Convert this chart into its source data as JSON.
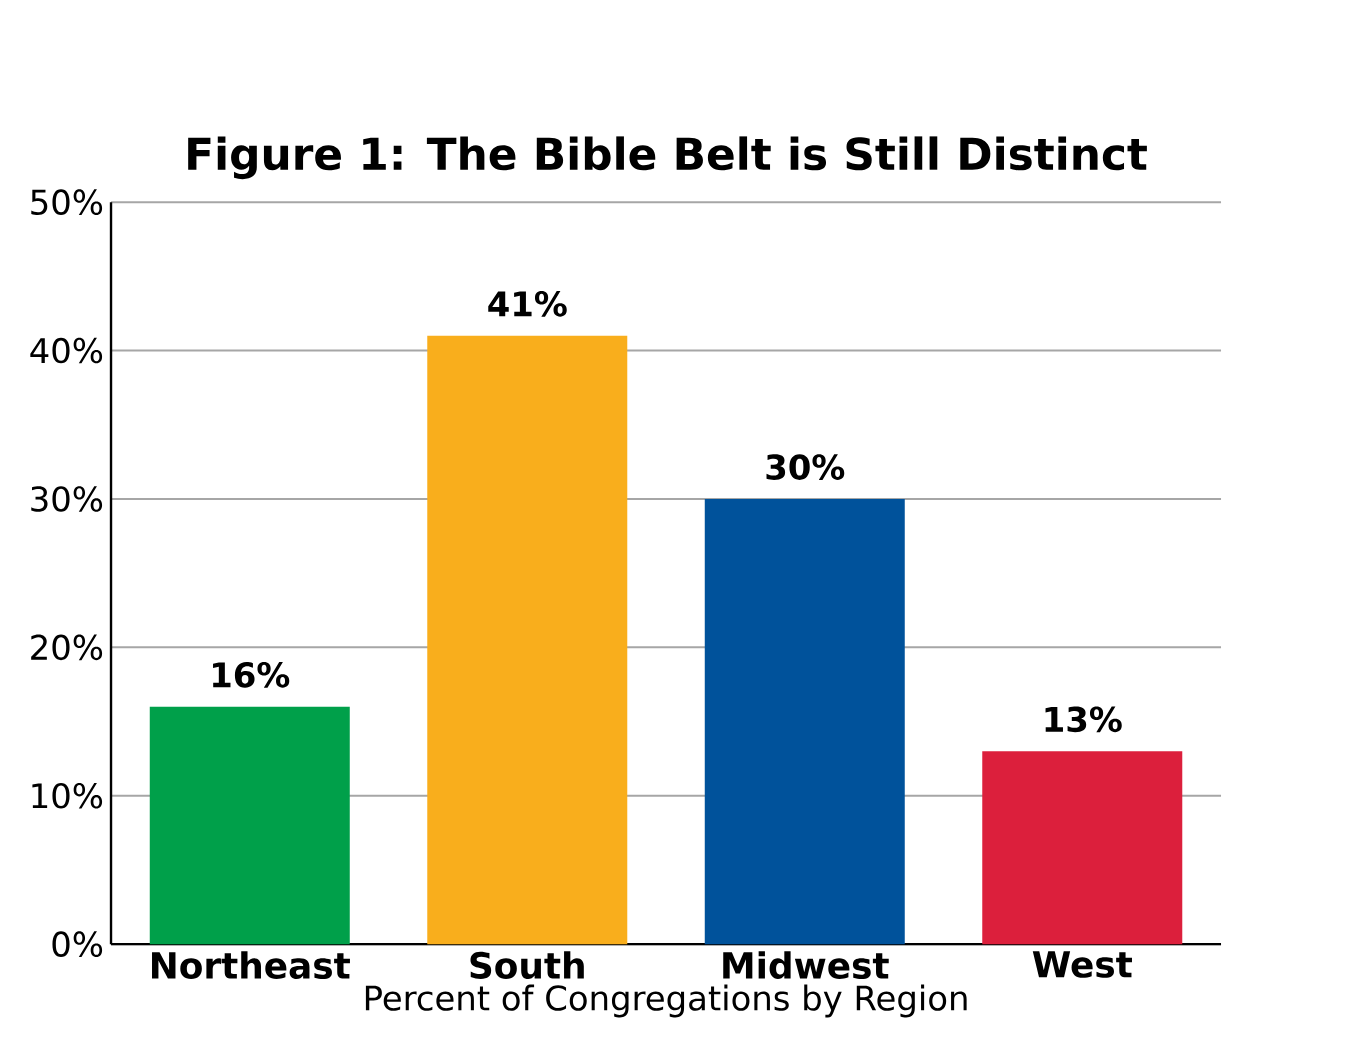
{
  "chart_data": {
    "type": "bar",
    "title": "Figure 1: The Bible Belt is Still Distinct",
    "xlabel": "Percent of Congregations by Region",
    "categories": [
      "Northeast",
      "South",
      "Midwest",
      "West"
    ],
    "values": [
      16,
      41,
      30,
      13
    ],
    "colors": [
      "#00a04a",
      "#f9ae1c",
      "#00529b",
      "#dc1f3c"
    ],
    "value_labels": [
      "16%",
      "41%",
      "30%",
      "13%"
    ],
    "ylim": [
      0,
      50
    ],
    "yticks": [
      {
        "value": 0,
        "label": "0%"
      },
      {
        "value": 10,
        "label": "10%"
      },
      {
        "value": 20,
        "label": "20%"
      },
      {
        "value": 30,
        "label": "30%"
      },
      {
        "value": 40,
        "label": "40%"
      },
      {
        "value": 50,
        "label": "50%"
      }
    ],
    "grid": "y"
  }
}
